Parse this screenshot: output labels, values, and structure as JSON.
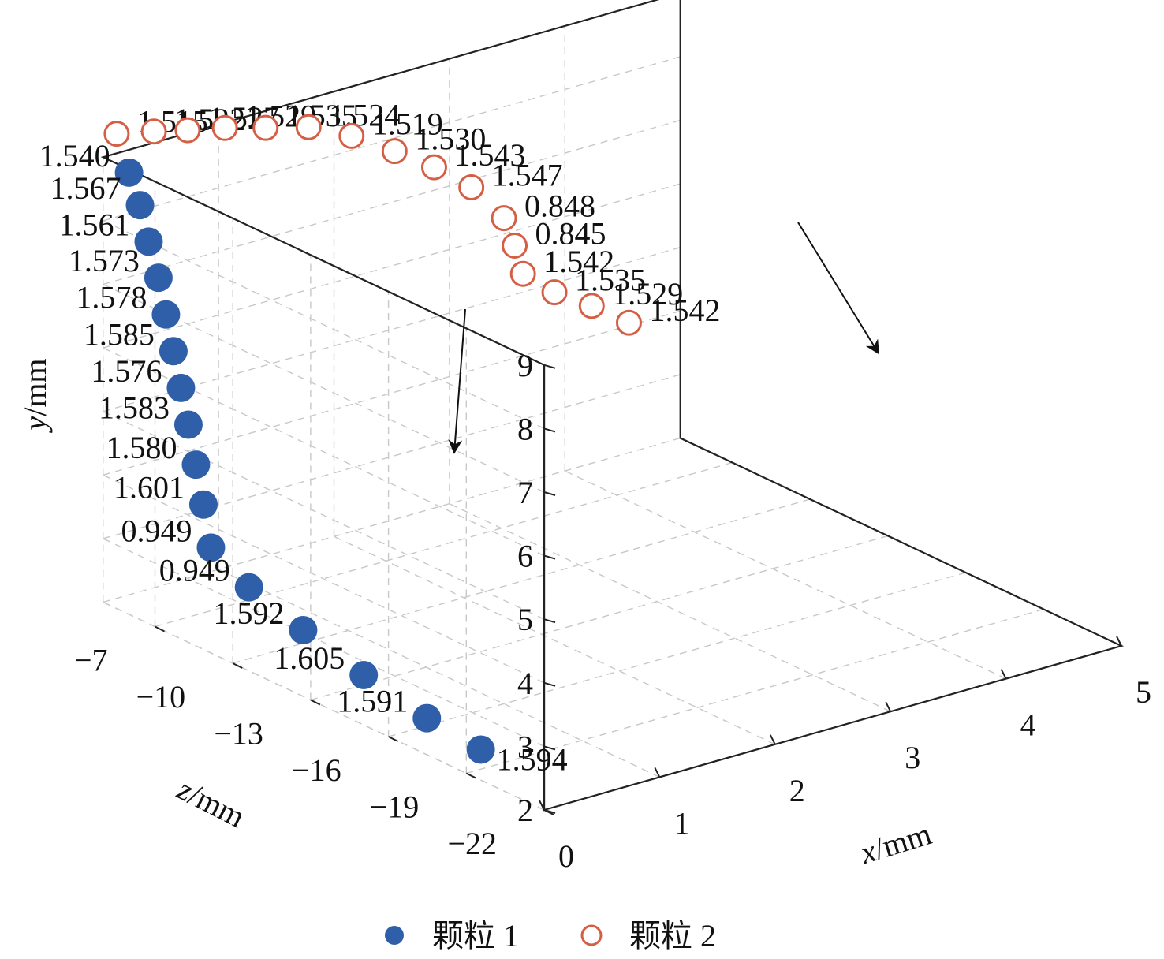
{
  "chart_data": {
    "type": "scatter",
    "projection": "3d",
    "xlabel": "x/mm",
    "ylabel": "y/mm",
    "zlabel": "z/mm",
    "xlim": [
      0,
      5
    ],
    "ylim": [
      2,
      9
    ],
    "zlim": [
      -22,
      -5
    ],
    "x_ticks": [
      "0",
      "1",
      "2",
      "3",
      "4",
      "5"
    ],
    "y_ticks": [
      "2",
      "3",
      "4",
      "5",
      "6",
      "7",
      "8",
      "9"
    ],
    "z_ticks": [
      "−7",
      "−10",
      "−13",
      "−16",
      "−19",
      "−22"
    ],
    "grid": true,
    "legend_position": "bottom",
    "series": [
      {
        "name": "颗粒 1",
        "marker": "filled-circle",
        "color": "#2e5fa8",
        "points": [
          {
            "x": 0.0,
            "y": 8.95,
            "z": -6.0,
            "label": "1.540"
          },
          {
            "x": 0.05,
            "y": 8.45,
            "z": -6.2,
            "label": "1.567"
          },
          {
            "x": 0.08,
            "y": 7.9,
            "z": -6.4,
            "label": "1.561"
          },
          {
            "x": 0.12,
            "y": 7.35,
            "z": -6.6,
            "label": "1.573"
          },
          {
            "x": 0.14,
            "y": 6.8,
            "z": -6.8,
            "label": "1.578"
          },
          {
            "x": 0.16,
            "y": 6.25,
            "z": -7.0,
            "label": "1.585"
          },
          {
            "x": 0.18,
            "y": 5.7,
            "z": -7.2,
            "label": "1.576"
          },
          {
            "x": 0.2,
            "y": 5.15,
            "z": -7.4,
            "label": "1.583"
          },
          {
            "x": 0.22,
            "y": 4.55,
            "z": -7.6,
            "label": "1.580"
          },
          {
            "x": 0.24,
            "y": 3.95,
            "z": -7.8,
            "label": "1.601"
          },
          {
            "x": 0.26,
            "y": 3.3,
            "z": -8.0,
            "label": "0.949"
          },
          {
            "x": 0.23,
            "y": 3.0,
            "z": -9.6,
            "label": "0.949"
          },
          {
            "x": 0.25,
            "y": 2.7,
            "z": -11.6,
            "label": "1.592"
          },
          {
            "x": 0.28,
            "y": 2.4,
            "z": -13.8,
            "label": "1.605"
          },
          {
            "x": 0.31,
            "y": 2.15,
            "z": -16.1,
            "label": "1.591"
          },
          {
            "x": 0.35,
            "y": 2.0,
            "z": -18.0,
            "label": "1.594"
          }
        ]
      },
      {
        "name": "颗粒 2",
        "marker": "open-circle",
        "color": "#d45f44",
        "points": [
          {
            "x": 0.05,
            "y": 9.4,
            "z": -5.3,
            "label": "1.515"
          },
          {
            "x": 0.35,
            "y": 9.3,
            "z": -5.4,
            "label": "1.522"
          },
          {
            "x": 0.62,
            "y": 9.2,
            "z": -5.5,
            "label": "1.527"
          },
          {
            "x": 0.92,
            "y": 9.1,
            "z": -5.6,
            "label": "1.529"
          },
          {
            "x": 1.25,
            "y": 8.95,
            "z": -5.7,
            "label": "1.535"
          },
          {
            "x": 1.6,
            "y": 8.8,
            "z": -5.8,
            "label": "1.524"
          },
          {
            "x": 1.95,
            "y": 8.5,
            "z": -5.9,
            "label": "1.519"
          },
          {
            "x": 2.3,
            "y": 8.1,
            "z": -6.0,
            "label": "1.530"
          },
          {
            "x": 2.62,
            "y": 7.7,
            "z": -6.1,
            "label": "1.543"
          },
          {
            "x": 2.92,
            "y": 7.25,
            "z": -6.2,
            "label": "1.547"
          },
          {
            "x": 3.18,
            "y": 6.65,
            "z": -6.3,
            "label": "0.848"
          },
          {
            "x": 3.25,
            "y": 6.2,
            "z": -6.4,
            "label": "0.845"
          },
          {
            "x": 3.3,
            "y": 5.75,
            "z": -6.5,
            "label": "1.542"
          },
          {
            "x": 3.55,
            "y": 5.35,
            "z": -6.6,
            "label": "1.535"
          },
          {
            "x": 3.85,
            "y": 5.0,
            "z": -6.7,
            "label": "1.529"
          },
          {
            "x": 4.15,
            "y": 4.6,
            "z": -6.8,
            "label": "1.542"
          }
        ]
      }
    ]
  },
  "legend": {
    "items": [
      {
        "label": "颗粒 1",
        "icon": "filled-circle-icon",
        "color": "#2e5fa8"
      },
      {
        "label": "颗粒 2",
        "icon": "open-circle-icon",
        "color": "#d45f44"
      }
    ]
  }
}
